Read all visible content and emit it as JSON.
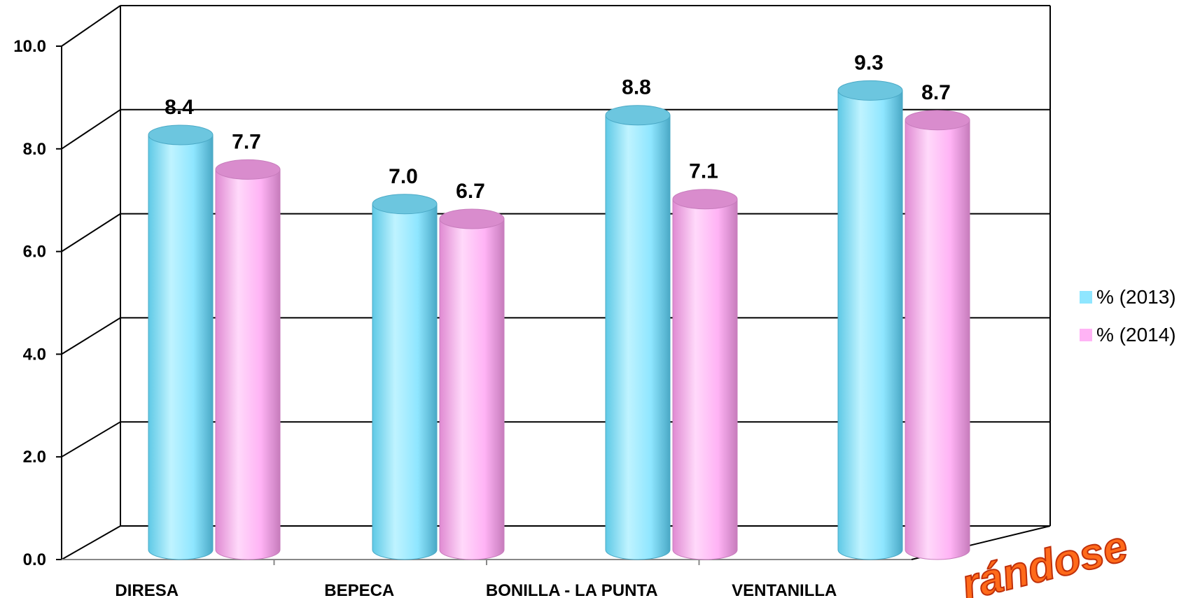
{
  "chart_data": {
    "type": "bar",
    "categories": [
      "DIRESA",
      "BEPECA",
      "BONILLA - LA PUNTA",
      "VENTANILLA"
    ],
    "series": [
      {
        "name": "% (2013)",
        "values": [
          8.4,
          7.0,
          8.8,
          9.3
        ],
        "color": "#8fe6ff"
      },
      {
        "name": "% (2014)",
        "values": [
          7.7,
          6.7,
          7.1,
          8.7
        ],
        "color": "#ffb3f5"
      }
    ],
    "data_labels": [
      [
        "8.4",
        "7.0",
        "8.8",
        "9.3"
      ],
      [
        "7.7",
        "6.7",
        "7.1",
        "8.7"
      ]
    ],
    "yticks": [
      "0.0",
      "2.0",
      "4.0",
      "6.0",
      "8.0",
      "10.0"
    ],
    "ylim": [
      0,
      10
    ],
    "grid": true,
    "legend": "right",
    "bar_shape": "cylinder-3d"
  },
  "overlay_text": "rándose"
}
